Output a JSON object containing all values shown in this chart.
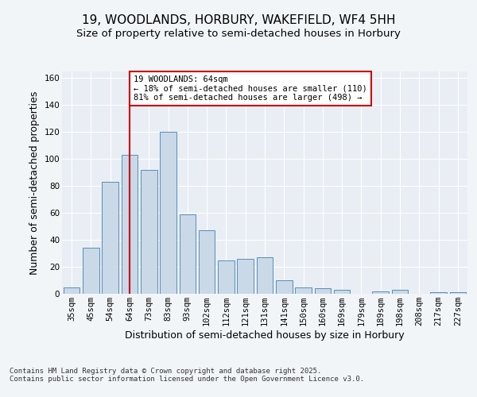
{
  "title_line1": "19, WOODLANDS, HORBURY, WAKEFIELD, WF4 5HH",
  "title_line2": "Size of property relative to semi-detached houses in Horbury",
  "xlabel": "Distribution of semi-detached houses by size in Horbury",
  "ylabel": "Number of semi-detached properties",
  "categories": [
    "35sqm",
    "45sqm",
    "54sqm",
    "64sqm",
    "73sqm",
    "83sqm",
    "93sqm",
    "102sqm",
    "112sqm",
    "121sqm",
    "131sqm",
    "141sqm",
    "150sqm",
    "160sqm",
    "169sqm",
    "179sqm",
    "189sqm",
    "198sqm",
    "208sqm",
    "217sqm",
    "227sqm"
  ],
  "values": [
    5,
    34,
    83,
    103,
    92,
    120,
    59,
    47,
    25,
    26,
    27,
    10,
    5,
    4,
    3,
    0,
    2,
    3,
    0,
    1,
    1
  ],
  "bar_color": "#c9d9e8",
  "bar_edge_color": "#5b8db8",
  "highlight_index": 3,
  "highlight_line_color": "#cc0000",
  "annotation_text": "19 WOODLANDS: 64sqm\n← 18% of semi-detached houses are smaller (110)\n81% of semi-detached houses are larger (498) →",
  "annotation_box_color": "#cc0000",
  "ylim": [
    0,
    165
  ],
  "yticks": [
    0,
    20,
    40,
    60,
    80,
    100,
    120,
    140,
    160
  ],
  "footer_text": "Contains HM Land Registry data © Crown copyright and database right 2025.\nContains public sector information licensed under the Open Government Licence v3.0.",
  "background_color": "#f2f5f8",
  "plot_background_color": "#e8eef4",
  "title_fontsize": 11,
  "subtitle_fontsize": 9.5,
  "axis_label_fontsize": 9,
  "tick_fontsize": 7.5,
  "footer_fontsize": 6.5,
  "annotation_fontsize": 7.5
}
